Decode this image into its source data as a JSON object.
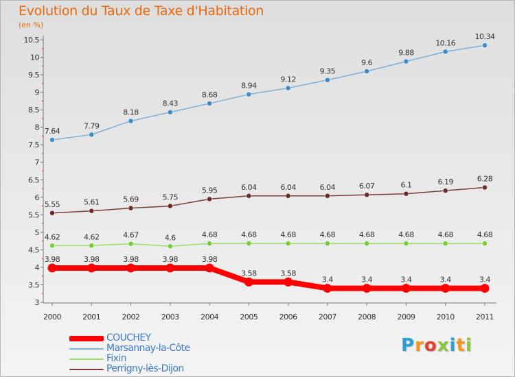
{
  "title": "Evolution du Taux de Taxe d'Habitation",
  "unit_label": "(en %)",
  "logo": {
    "text": "Proxiti",
    "colors": [
      "#2a9fd6",
      "#f7941d",
      "#e63c2e",
      "#8dc63f",
      "#2a9fd6",
      "#f7941d",
      "#8dc63f"
    ]
  },
  "chart_data": {
    "type": "line",
    "x": [
      "2000",
      "2001",
      "2002",
      "2003",
      "2004",
      "2005",
      "2006",
      "2007",
      "2008",
      "2009",
      "2010",
      "2011"
    ],
    "ylim": [
      3,
      10.5
    ],
    "yticks": [
      "3",
      "3.5",
      "4",
      "4.5",
      "5",
      "5.5",
      "6",
      "6.5",
      "7",
      "7.5",
      "8",
      "8.5",
      "9",
      "9.5",
      "10",
      "10.5"
    ],
    "grid": false,
    "legend_position": "bottom-left",
    "series": [
      {
        "name": "COUCHEY",
        "color": "#ff0000",
        "values": [
          3.98,
          3.98,
          3.98,
          3.98,
          3.98,
          3.58,
          3.58,
          3.4,
          3.4,
          3.4,
          3.4,
          3.4
        ],
        "labels": [
          "3.98",
          "3.98",
          "3.98",
          "3.98",
          "3.98",
          "3.58",
          "3.58",
          "3.4",
          "3.4",
          "3.4",
          "3.4",
          "3.4"
        ],
        "emphasis": true
      },
      {
        "name": "Marsannay-la-Côte",
        "color": "#7fb0d9",
        "values": [
          7.64,
          7.79,
          8.18,
          8.43,
          8.68,
          8.94,
          9.12,
          9.35,
          9.6,
          9.88,
          10.16,
          10.34
        ],
        "labels": [
          "7.64",
          "7.79",
          "8.18",
          "8.43",
          "8.68",
          "8.94",
          "9.12",
          "9.35",
          "9.6",
          "9.88",
          "10.16",
          "10.34"
        ],
        "marker_color": "#3b8cc4"
      },
      {
        "name": "Fixin",
        "color": "#99dd66",
        "values": [
          4.62,
          4.62,
          4.67,
          4.6,
          4.68,
          4.68,
          4.68,
          4.68,
          4.68,
          4.68,
          4.68,
          4.68
        ],
        "labels": [
          "4.62",
          "4.62",
          "4.67",
          "4.6",
          "4.68",
          "4.68",
          "4.68",
          "4.68",
          "4.68",
          "4.68",
          "4.68",
          "4.68"
        ],
        "marker_color": "#77cc33"
      },
      {
        "name": "Perrigny-lès-Dijon",
        "color": "#7a3b3b",
        "values": [
          5.55,
          5.61,
          5.69,
          5.75,
          5.95,
          6.04,
          6.04,
          6.04,
          6.07,
          6.1,
          6.19,
          6.28
        ],
        "labels": [
          "5.55",
          "5.61",
          "5.69",
          "5.75",
          "5.95",
          "6.04",
          "6.04",
          "6.04",
          "6.07",
          "6.1",
          "6.19",
          "6.28"
        ],
        "marker_color": "#6b2a2a"
      }
    ]
  }
}
